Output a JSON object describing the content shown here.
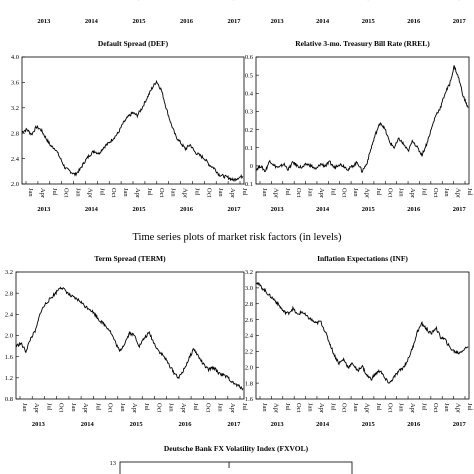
{
  "caption": "Time series plots of market risk factors (in levels)",
  "top_partial_axis": {
    "tick_labels": [
      "Jan",
      "Apr",
      "Jul",
      "Oct",
      "Jan",
      "Apr",
      "Jul",
      "Oct",
      "Jan",
      "Apr",
      "Jul",
      "Oct",
      "Jan",
      "Apr",
      "Jul",
      "Oct",
      "Jan",
      "Apr",
      "Jul"
    ],
    "years": [
      "2013",
      "2014",
      "2015",
      "2016",
      "2017"
    ]
  },
  "chart_data": [
    {
      "type": "line",
      "title": "Default Spread (DEF)",
      "xlabel": "",
      "ylabel": "",
      "ylim": [
        2.0,
        4.0
      ],
      "yticks": [
        "2.0",
        "2.4",
        "2.8",
        "3.2",
        "3.6",
        "4.0"
      ],
      "xticks": [
        "Jan",
        "Apr",
        "Jul",
        "Oct",
        "Jan",
        "Apr",
        "Jul",
        "Oct",
        "Jan",
        "Apr",
        "Jul",
        "Oct",
        "Jan",
        "Apr",
        "Jul",
        "Oct",
        "Jan",
        "Apr",
        "Jul"
      ],
      "years": [
        "2013",
        "2014",
        "2015",
        "2016",
        "2017"
      ],
      "grid": false,
      "series": [
        {
          "x": [
            2013.0,
            2013.1,
            2013.2,
            2013.3,
            2013.4,
            2013.5,
            2013.6,
            2013.7,
            2013.8,
            2013.9,
            2014.0,
            2014.1,
            2014.2,
            2014.3,
            2014.4,
            2014.5,
            2014.6,
            2014.7,
            2014.8,
            2014.9,
            2015.0,
            2015.1,
            2015.2,
            2015.3,
            2015.4,
            2015.5,
            2015.6,
            2015.7,
            2015.8,
            2015.9,
            2016.0,
            2016.1,
            2016.2,
            2016.3,
            2016.4,
            2016.5,
            2016.6,
            2016.7,
            2016.8,
            2016.9,
            2017.0,
            2017.1,
            2017.2,
            2017.3,
            2017.4,
            2017.5,
            2017.6
          ],
          "y": [
            2.82,
            2.86,
            2.78,
            2.9,
            2.85,
            2.72,
            2.6,
            2.55,
            2.4,
            2.25,
            2.2,
            2.15,
            2.22,
            2.35,
            2.45,
            2.52,
            2.48,
            2.58,
            2.64,
            2.72,
            2.8,
            2.95,
            3.05,
            3.12,
            3.08,
            3.2,
            3.35,
            3.5,
            3.62,
            3.48,
            3.2,
            2.95,
            2.75,
            2.65,
            2.55,
            2.62,
            2.5,
            2.45,
            2.4,
            2.3,
            2.25,
            2.15,
            2.12,
            2.1,
            2.06,
            2.1,
            2.12
          ]
        }
      ]
    },
    {
      "type": "line",
      "title": "Relative 3-mo. Treasury Bill Rate (RREL)",
      "xlabel": "",
      "ylabel": "",
      "ylim": [
        -0.1,
        0.6
      ],
      "yticks": [
        "-0.1",
        "0",
        "0.1",
        "0.2",
        "0.3",
        "0.4",
        "0.5",
        "0.6"
      ],
      "xticks": [
        "Jan",
        "Apr",
        "Jul",
        "Oct",
        "Jan",
        "Apr",
        "Jul",
        "Oct",
        "Jan",
        "Apr",
        "Jul",
        "Oct",
        "Jan",
        "Apr",
        "Jul",
        "Oct",
        "Jan",
        "Apr",
        "Jul"
      ],
      "years": [
        "2013",
        "2014",
        "2015",
        "2016",
        "2017"
      ],
      "grid": false,
      "series": [
        {
          "x": [
            2013.0,
            2013.1,
            2013.2,
            2013.3,
            2013.4,
            2013.5,
            2013.6,
            2013.7,
            2013.8,
            2013.9,
            2014.0,
            2014.1,
            2014.2,
            2014.3,
            2014.4,
            2014.5,
            2014.6,
            2014.7,
            2014.8,
            2014.9,
            2015.0,
            2015.1,
            2015.2,
            2015.3,
            2015.4,
            2015.5,
            2015.6,
            2015.7,
            2015.8,
            2015.9,
            2016.0,
            2016.1,
            2016.2,
            2016.3,
            2016.4,
            2016.5,
            2016.6,
            2016.7,
            2016.8,
            2016.9,
            2017.0,
            2017.1,
            2017.2,
            2017.3,
            2017.4,
            2017.5,
            2017.6
          ],
          "y": [
            -0.02,
            0.0,
            -0.03,
            0.03,
            0.0,
            -0.01,
            0.01,
            -0.02,
            0.02,
            0.0,
            -0.01,
            0.01,
            0.0,
            -0.02,
            0.01,
            0.0,
            0.02,
            -0.01,
            0.01,
            0.0,
            -0.02,
            0.0,
            0.02,
            -0.03,
            0.01,
            0.1,
            0.18,
            0.24,
            0.2,
            0.13,
            0.1,
            0.15,
            0.12,
            0.08,
            0.14,
            0.1,
            0.06,
            0.12,
            0.2,
            0.28,
            0.32,
            0.4,
            0.45,
            0.55,
            0.48,
            0.38,
            0.32
          ]
        }
      ]
    },
    {
      "type": "line",
      "title": "Term Spread (TERM)",
      "xlabel": "",
      "ylabel": "",
      "ylim": [
        0.8,
        3.2
      ],
      "yticks": [
        "0.8",
        "1.2",
        "1.6",
        "2.0",
        "2.4",
        "2.8",
        "3.2"
      ],
      "xticks": [
        "Jan",
        "Apr",
        "Jul",
        "Oct",
        "Jan",
        "Apr",
        "Jul",
        "Oct",
        "Jan",
        "Apr",
        "Jul",
        "Oct",
        "Jan",
        "Apr",
        "Jul",
        "Oct",
        "Jan",
        "Apr",
        "Jul"
      ],
      "years": [
        "2013",
        "2014",
        "2015",
        "2016",
        "2017"
      ],
      "grid": false,
      "series": [
        {
          "x": [
            2013.0,
            2013.1,
            2013.2,
            2013.3,
            2013.4,
            2013.5,
            2013.6,
            2013.7,
            2013.8,
            2013.9,
            2014.0,
            2014.1,
            2014.2,
            2014.3,
            2014.4,
            2014.5,
            2014.6,
            2014.7,
            2014.8,
            2014.9,
            2015.0,
            2015.1,
            2015.2,
            2015.3,
            2015.4,
            2015.5,
            2015.6,
            2015.7,
            2015.8,
            2015.9,
            2016.0,
            2016.1,
            2016.2,
            2016.3,
            2016.4,
            2016.5,
            2016.6,
            2016.7,
            2016.8,
            2016.9,
            2017.0,
            2017.1,
            2017.2,
            2017.3,
            2017.4,
            2017.5,
            2017.6
          ],
          "y": [
            1.8,
            1.85,
            1.7,
            1.95,
            2.1,
            2.45,
            2.6,
            2.7,
            2.8,
            2.92,
            2.85,
            2.75,
            2.7,
            2.65,
            2.55,
            2.5,
            2.4,
            2.28,
            2.2,
            2.1,
            1.9,
            1.7,
            1.85,
            2.05,
            2.0,
            1.8,
            1.95,
            2.05,
            1.85,
            1.7,
            1.6,
            1.45,
            1.3,
            1.2,
            1.35,
            1.55,
            1.75,
            1.6,
            1.45,
            1.35,
            1.4,
            1.3,
            1.25,
            1.2,
            1.1,
            1.05,
            1.0
          ]
        }
      ]
    },
    {
      "type": "line",
      "title": "Inflation Expectations (INF)",
      "xlabel": "",
      "ylabel": "",
      "ylim": [
        1.6,
        3.2
      ],
      "yticks": [
        "1.6",
        "1.8",
        "2.0",
        "2.2",
        "2.4",
        "2.6",
        "2.8",
        "3.0",
        "3.2"
      ],
      "xticks": [
        "Jan",
        "Apr",
        "Jul",
        "Oct",
        "Jan",
        "Apr",
        "Jul",
        "Oct",
        "Jan",
        "Apr",
        "Jul",
        "Oct",
        "Jan",
        "Apr",
        "Jul",
        "Oct",
        "Jan",
        "Apr",
        "Jul"
      ],
      "years": [
        "2013",
        "2014",
        "2015",
        "2016",
        "2017"
      ],
      "grid": false,
      "series": [
        {
          "x": [
            2013.0,
            2013.1,
            2013.2,
            2013.3,
            2013.4,
            2013.5,
            2013.6,
            2013.7,
            2013.8,
            2013.9,
            2014.0,
            2014.1,
            2014.2,
            2014.3,
            2014.4,
            2014.5,
            2014.6,
            2014.7,
            2014.8,
            2014.9,
            2015.0,
            2015.1,
            2015.2,
            2015.3,
            2015.4,
            2015.5,
            2015.6,
            2015.7,
            2015.8,
            2015.9,
            2016.0,
            2016.1,
            2016.2,
            2016.3,
            2016.4,
            2016.5,
            2016.6,
            2016.7,
            2016.8,
            2016.9,
            2017.0,
            2017.1,
            2017.2,
            2017.3,
            2017.4,
            2017.5,
            2017.6
          ],
          "y": [
            3.08,
            3.02,
            2.96,
            2.9,
            2.85,
            2.78,
            2.7,
            2.68,
            2.74,
            2.66,
            2.7,
            2.64,
            2.6,
            2.55,
            2.58,
            2.45,
            2.3,
            2.15,
            2.05,
            2.1,
            2.0,
            2.05,
            1.95,
            2.02,
            1.9,
            1.85,
            1.92,
            1.96,
            1.85,
            1.8,
            1.88,
            1.95,
            2.0,
            2.1,
            2.25,
            2.45,
            2.55,
            2.48,
            2.42,
            2.5,
            2.38,
            2.35,
            2.25,
            2.2,
            2.18,
            2.22,
            2.26
          ]
        }
      ]
    },
    {
      "type": "line",
      "title": "Deutsche Bank FX Volatility Index (FXVOL)",
      "xlabel": "",
      "ylabel": "",
      "yticks": [
        "13"
      ],
      "grid": false,
      "series": []
    }
  ]
}
